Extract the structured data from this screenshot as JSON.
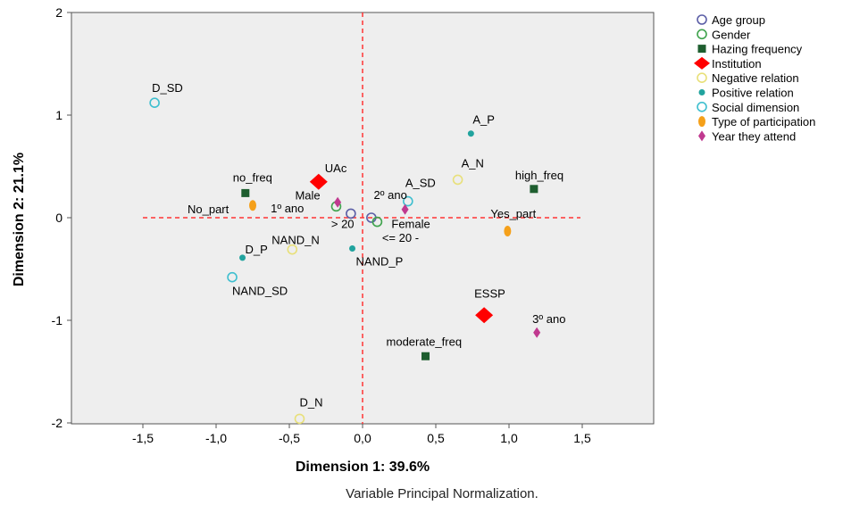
{
  "chart_data": {
    "type": "scatter",
    "xlabel": "Dimension 1: 39.6%",
    "ylabel": "Dimension 2: 21.1%",
    "note": "Variable Principal Normalization.",
    "xlim": [
      -2.0,
      2.0
    ],
    "ylim": [
      -2.0,
      2.0
    ],
    "x_ticks": [
      "-1,5",
      "-1,0",
      "-0,5",
      "0,0",
      "0,5",
      "1,0",
      "1,5"
    ],
    "x_tick_values": [
      -1.5,
      -1.0,
      -0.5,
      0.0,
      0.5,
      1.0,
      1.5
    ],
    "y_ticks": [
      "2",
      "1",
      "0",
      "-1",
      "-2"
    ],
    "y_tick_values": [
      2,
      1,
      0,
      -1,
      -2
    ],
    "reference_lines": "dashed red lines at x = 0 and y = 0",
    "grid": false,
    "legend_position": "right",
    "series": [
      {
        "name": "Age group",
        "marker": "open-circle",
        "color": "#5b5ea6",
        "points": [
          {
            "label": "> 20",
            "x": -0.08,
            "y": 0.04
          },
          {
            "label": "<= 20 -",
            "x": 0.06,
            "y": 0.0
          }
        ]
      },
      {
        "name": "Gender",
        "marker": "open-circle",
        "color": "#3fa34d",
        "points": [
          {
            "label": "Male",
            "x": -0.18,
            "y": 0.11
          },
          {
            "label": "Female",
            "x": 0.1,
            "y": -0.04
          }
        ]
      },
      {
        "name": "Hazing frequency",
        "marker": "square",
        "color": "#1e5e2f",
        "points": [
          {
            "label": "no_freq",
            "x": -0.8,
            "y": 0.24
          },
          {
            "label": "high_freq",
            "x": 1.17,
            "y": 0.28
          },
          {
            "label": "moderate_freq",
            "x": 0.43,
            "y": -1.35
          }
        ]
      },
      {
        "name": "Institution",
        "marker": "diamond",
        "color": "#ff0000",
        "points": [
          {
            "label": "UAc",
            "x": -0.3,
            "y": 0.35
          },
          {
            "label": "ESSP",
            "x": 0.83,
            "y": -0.95
          }
        ]
      },
      {
        "name": "Negative relation",
        "marker": "open-circle",
        "color": "#e8e07a",
        "points": [
          {
            "label": "A_N",
            "x": 0.65,
            "y": 0.37
          },
          {
            "label": "NAND_N",
            "x": -0.48,
            "y": -0.31
          },
          {
            "label": "D_N",
            "x": -0.43,
            "y": -1.96
          }
        ]
      },
      {
        "name": "Positive relation",
        "marker": "dot",
        "color": "#21a39e",
        "points": [
          {
            "label": "A_P",
            "x": 0.74,
            "y": 0.82
          },
          {
            "label": "D_P",
            "x": -0.82,
            "y": -0.39
          },
          {
            "label": "NAND_P",
            "x": -0.07,
            "y": -0.3
          }
        ]
      },
      {
        "name": "Social dimension",
        "marker": "open-circle",
        "color": "#3fbfcf",
        "points": [
          {
            "label": "D_SD",
            "x": -1.42,
            "y": 1.12
          },
          {
            "label": "A_SD",
            "x": 0.31,
            "y": 0.16
          },
          {
            "label": "NAND_SD",
            "x": -0.89,
            "y": -0.58
          }
        ]
      },
      {
        "name": "Type of participation",
        "marker": "oval",
        "color": "#f5a01a",
        "points": [
          {
            "label": "No_part",
            "x": -0.75,
            "y": 0.12
          },
          {
            "label": "Yes_part",
            "x": 0.99,
            "y": -0.13
          }
        ]
      },
      {
        "name": "Year they attend",
        "marker": "small-diamond",
        "color": "#c0398f",
        "points": [
          {
            "label": "1º ano",
            "x": -0.17,
            "y": 0.15
          },
          {
            "label": "2º ano",
            "x": 0.29,
            "y": 0.08
          },
          {
            "label": "3º ano",
            "x": 1.19,
            "y": -1.12
          }
        ]
      }
    ]
  }
}
